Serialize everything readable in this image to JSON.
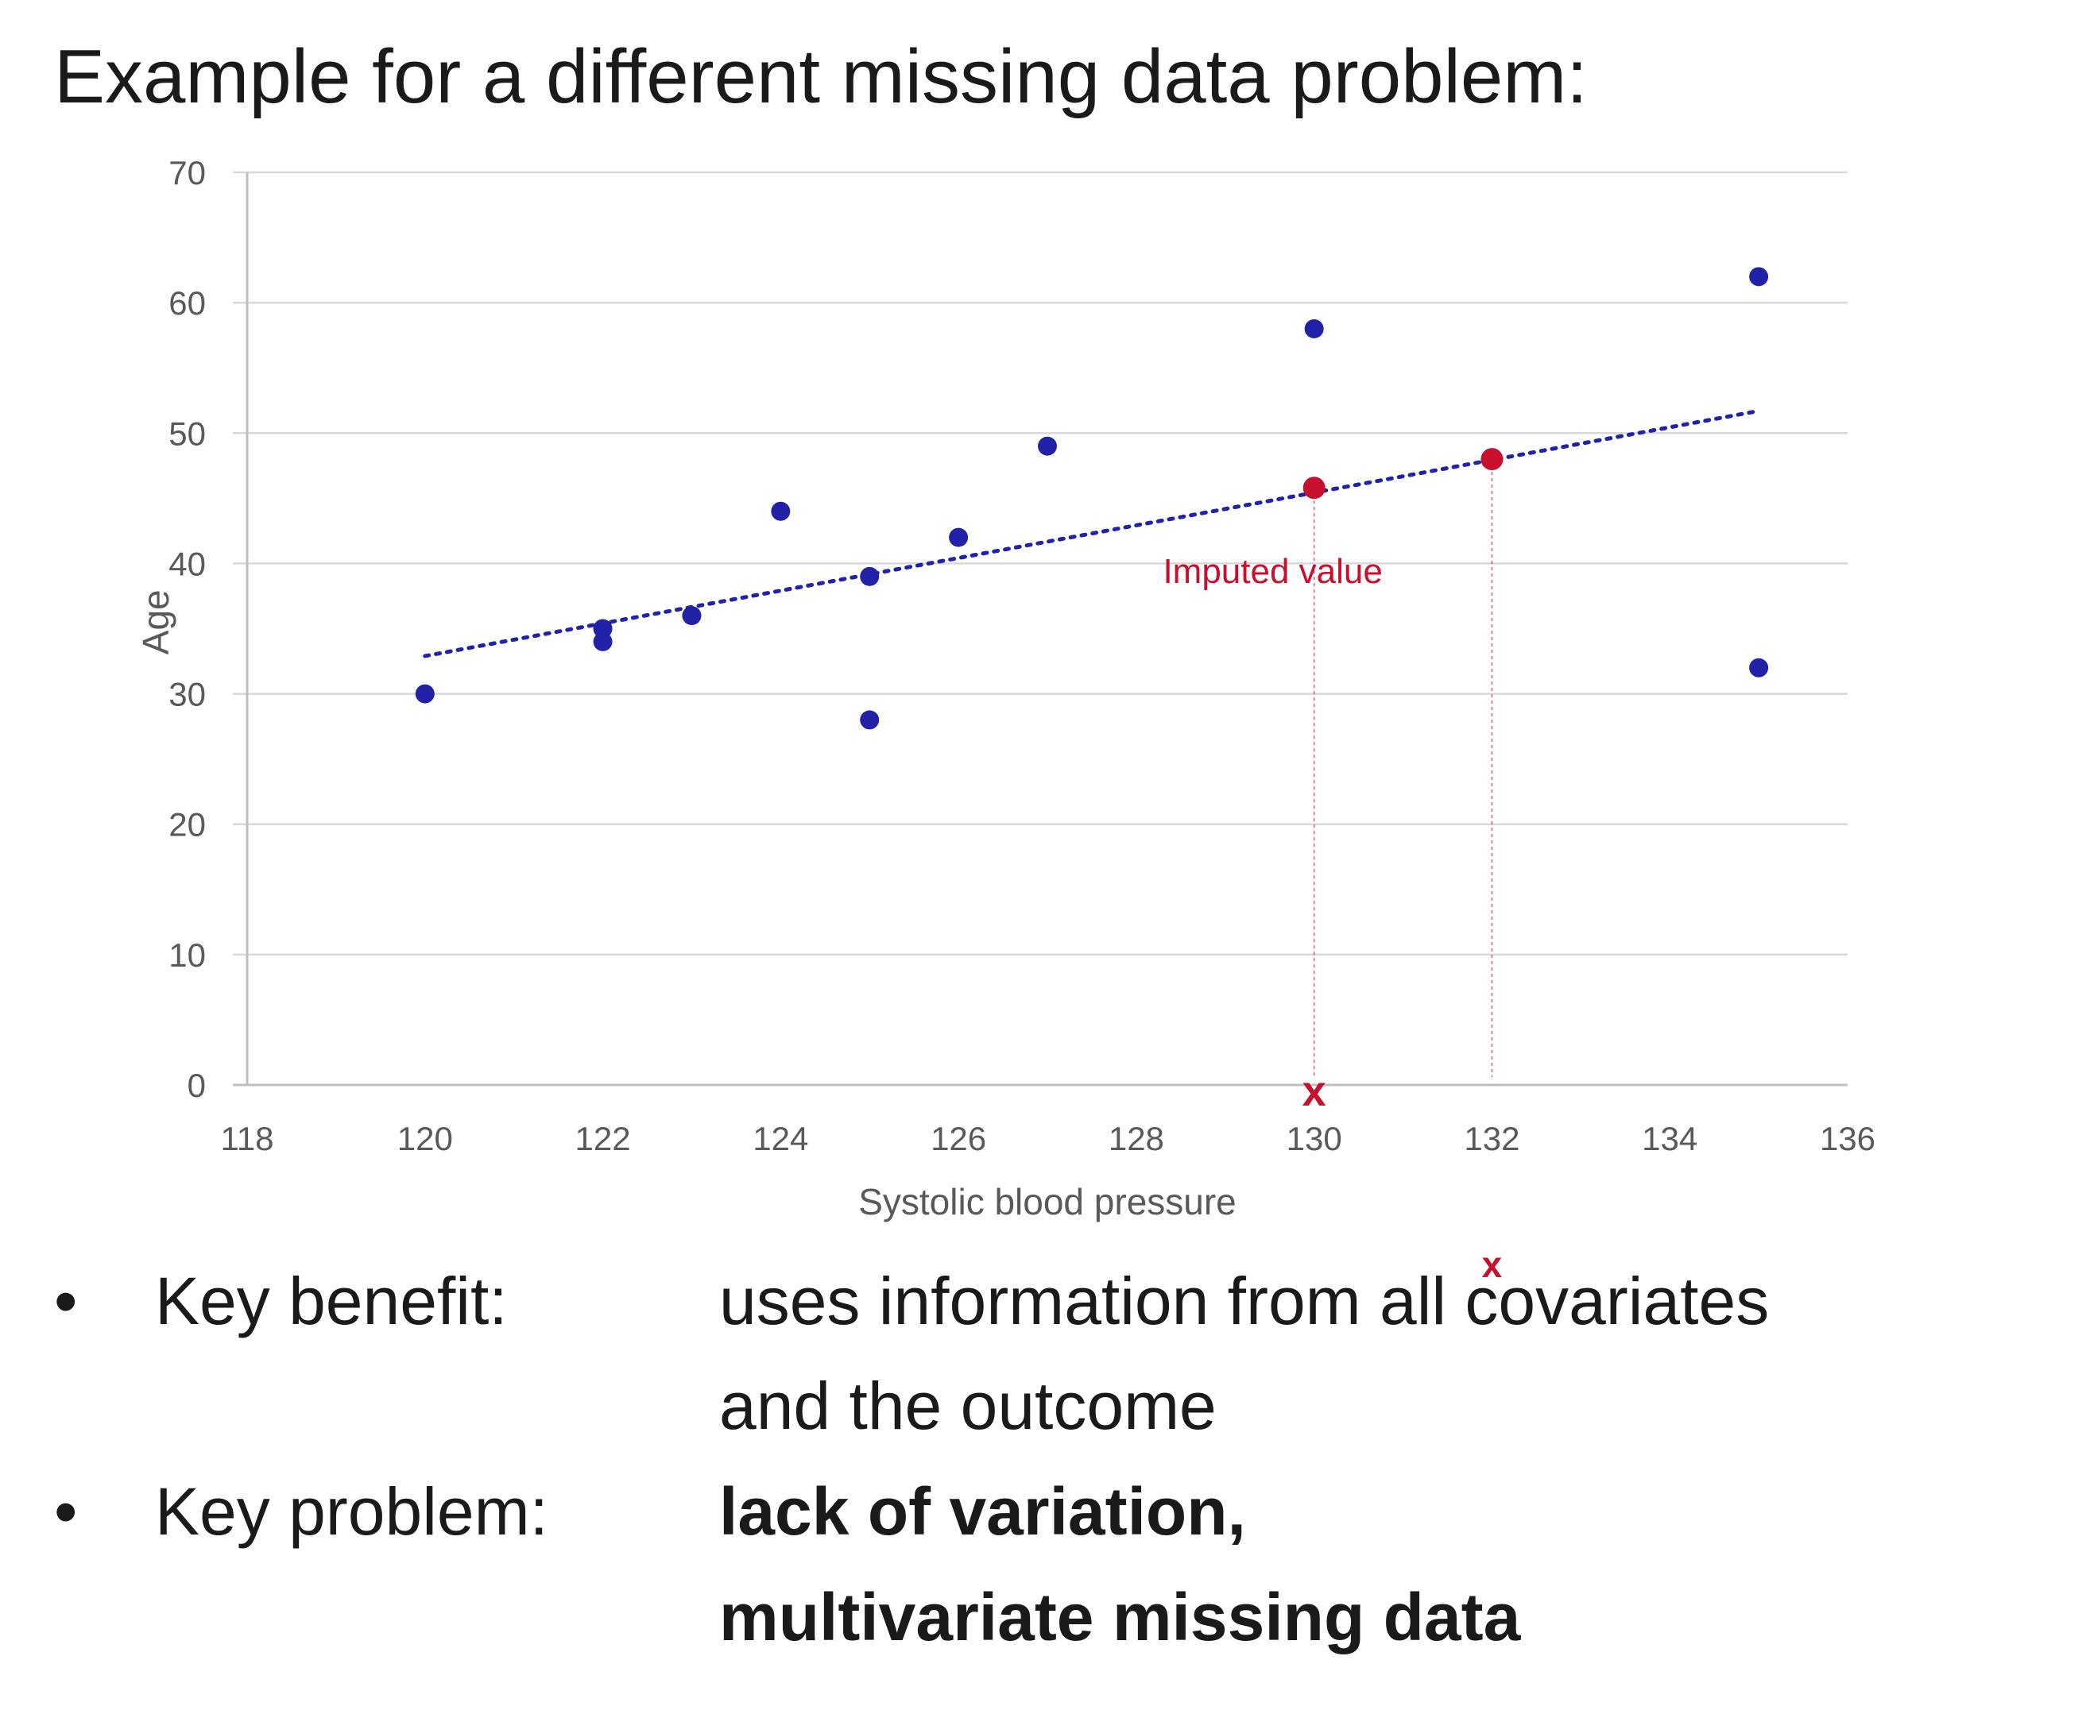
{
  "title": "Example for a different missing data problem:",
  "chart_data": {
    "type": "scatter",
    "xlabel": "Systolic blood pressure",
    "ylabel": "Age",
    "xlim": [
      118,
      136
    ],
    "ylim": [
      0,
      70
    ],
    "x_ticks": [
      118,
      120,
      122,
      124,
      126,
      128,
      130,
      132,
      134,
      136
    ],
    "y_ticks": [
      0,
      10,
      20,
      30,
      40,
      50,
      60,
      70
    ],
    "grid": "horizontal",
    "series": [
      {
        "points": [
          {
            "x": 120,
            "y": 30
          },
          {
            "x": 122,
            "y": 35
          },
          {
            "x": 122,
            "y": 34
          },
          {
            "x": 123,
            "y": 36
          },
          {
            "x": 124,
            "y": 44
          },
          {
            "x": 125,
            "y": 39
          },
          {
            "x": 125,
            "y": 28
          },
          {
            "x": 126,
            "y": 42
          },
          {
            "x": 127,
            "y": 49
          },
          {
            "x": 130,
            "y": 58
          },
          {
            "x": 135,
            "y": 62
          },
          {
            "x": 135,
            "y": 32
          }
        ],
        "color": "#2222a8"
      },
      {
        "points": [
          {
            "x": 130,
            "y": 45.8
          },
          {
            "x": 132,
            "y": 48
          }
        ],
        "color": "#c8102e"
      }
    ],
    "trendline": {
      "x_start": 120,
      "y_start": 32.9,
      "x_end": 135,
      "y_end": 51.7,
      "style": "dotted",
      "color": "#2222a8"
    },
    "annotations": [
      {
        "text": "Imputed value",
        "x": 128.3,
        "y": 38.5,
        "color": "#c8102e"
      },
      {
        "text": "x",
        "x": 130,
        "y": 0,
        "color": "#c8102e"
      }
    ],
    "drop_lines_at_x": [
      130,
      132
    ]
  },
  "below_axis_mark": "x",
  "bullets": [
    {
      "label": "Key benefit:",
      "lines": [
        "uses information from all covariates",
        "and the outcome"
      ],
      "bold": false
    },
    {
      "label": "Key problem:",
      "lines": [
        "lack of variation,",
        "multivariate missing data"
      ],
      "bold": true
    }
  ],
  "bullet_symbol": "•",
  "colors": {
    "points": "#2222a8",
    "imputed": "#c8102e",
    "grid": "#d9d9d9",
    "text": "#1a1a1a"
  }
}
